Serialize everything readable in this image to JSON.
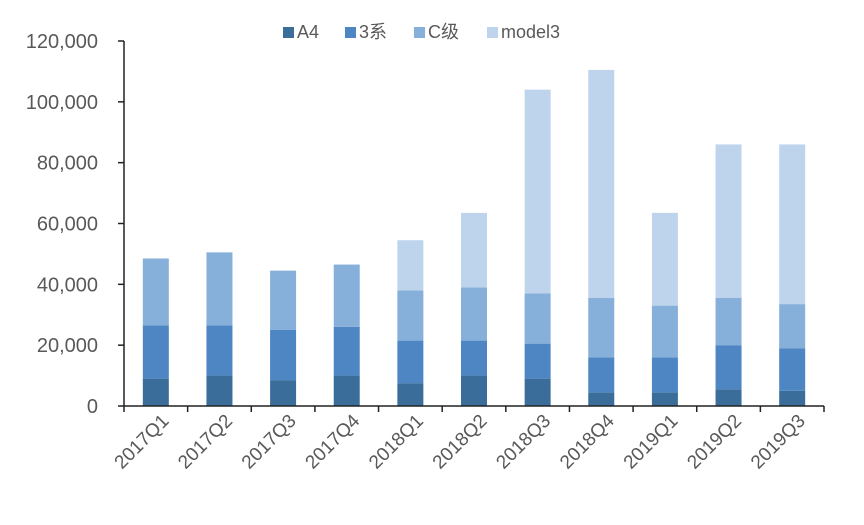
{
  "chart_data": {
    "type": "bar",
    "stacked": true,
    "categories": [
      "2017Q1",
      "2017Q2",
      "2017Q3",
      "2017Q4",
      "2018Q1",
      "2018Q2",
      "2018Q3",
      "2018Q4",
      "2019Q1",
      "2019Q2",
      "2019Q3"
    ],
    "series": [
      {
        "name": "A4",
        "color": "#3a6d99",
        "values": [
          9000,
          10000,
          8500,
          10000,
          7500,
          10000,
          9000,
          4500,
          4500,
          5500,
          5000
        ]
      },
      {
        "name": "3系",
        "color": "#4e86c3",
        "values": [
          17500,
          16500,
          16500,
          16000,
          14000,
          11500,
          11500,
          11500,
          11500,
          14500,
          14000
        ]
      },
      {
        "name": "C级",
        "color": "#86afda",
        "values": [
          22000,
          24000,
          19500,
          20500,
          16500,
          17500,
          16500,
          19500,
          17000,
          15500,
          14500
        ]
      },
      {
        "name": "model3",
        "color": "#bed4ec",
        "values": [
          0,
          0,
          0,
          0,
          16500,
          24500,
          67000,
          75000,
          30500,
          50500,
          52500
        ]
      }
    ],
    "ylim": [
      0,
      120000
    ],
    "yticks": [
      0,
      20000,
      40000,
      60000,
      80000,
      100000,
      120000
    ],
    "ytick_labels": [
      "0",
      "20,000",
      "40,000",
      "60,000",
      "80,000",
      "100,000",
      "120,000"
    ],
    "title": "",
    "xlabel": "",
    "ylabel": "",
    "grid": false,
    "legend_position": "top-center"
  }
}
